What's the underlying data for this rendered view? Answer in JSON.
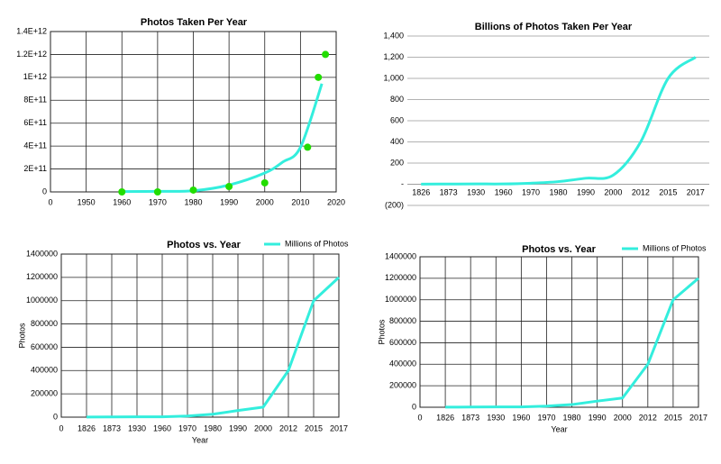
{
  "chart_data": [
    {
      "type": "scatter",
      "title": "Photos Taken Per Year",
      "series": [
        {
          "x": [
            1960,
            1970,
            1980,
            1990,
            2000,
            2012,
            2015,
            2017
          ],
          "values": [
            0,
            0,
            16000000000,
            47000000000,
            79000000000,
            390000000000,
            1000000000000,
            1200000000000
          ],
          "color": "#22dd00"
        }
      ],
      "trendline": {
        "x": [
          1960,
          1970,
          1980,
          1990,
          2000,
          2005,
          2010,
          2016
        ],
        "values": [
          3000000000,
          5000000000,
          10000000000,
          60000000000,
          165000000000,
          260000000000,
          390000000000,
          945000000000
        ],
        "color": "#33eedd"
      },
      "xlim": [
        1940,
        2020
      ],
      "xticks": [
        {
          "value": 1940,
          "label": "0"
        },
        1950,
        1960,
        1970,
        1980,
        1990,
        2000,
        2010,
        2020
      ],
      "ylim": [
        0,
        1400000000000
      ],
      "yticks": [
        0,
        {
          "value": 200000000000,
          "label": "2E+11"
        },
        {
          "value": 400000000000,
          "label": "4E+11"
        },
        {
          "value": 600000000000,
          "label": "6E+11"
        },
        {
          "value": 800000000000,
          "label": "8E+11"
        },
        {
          "value": 1000000000000,
          "label": "1E+12"
        },
        {
          "value": 1200000000000,
          "label": "1.2E+12"
        },
        {
          "value": 1400000000000,
          "label": "1.4E+12"
        }
      ],
      "grid": "both"
    },
    {
      "type": "line",
      "title": "Billions of Photos Taken Per Year",
      "categories": [
        "1826",
        "1873",
        "1930",
        "1960",
        "1970",
        "1980",
        "1990",
        "2000",
        "2012",
        "2015",
        "2017"
      ],
      "series": [
        {
          "values": [
            1,
            2,
            3,
            3,
            10,
            25,
            57,
            86,
            400,
            1000,
            1200
          ],
          "color": "#33eedd",
          "smooth": true
        }
      ],
      "ylim": [
        -200,
        1400
      ],
      "yticks": [
        {
          "value": -200,
          "label": "(200)"
        },
        {
          "value": 0,
          "label": "-"
        },
        200,
        400,
        600,
        800,
        {
          "value": 1000,
          "label": "1,000"
        },
        {
          "value": 1200,
          "label": "1,200"
        },
        {
          "value": 1400,
          "label": "1,400"
        }
      ],
      "grid": "y"
    },
    {
      "type": "line",
      "title": "Photos vs. Year",
      "xlabel": "Year",
      "ylabel": "Photos",
      "categories": [
        "0",
        "1826",
        "1873",
        "1930",
        "1960",
        "1970",
        "1980",
        "1990",
        "2000",
        "2012",
        "2015",
        "2017"
      ],
      "series": [
        {
          "name": "Millions of Photos",
          "values": [
            null,
            1000,
            2000,
            3000,
            3000,
            10000,
            25000,
            57000,
            86000,
            400000,
            1000000,
            1200000
          ],
          "color": "#33eedd"
        }
      ],
      "ylim": [
        0,
        1400000
      ],
      "yticks": [
        0,
        200000,
        400000,
        600000,
        800000,
        1000000,
        1200000,
        1400000
      ],
      "grid": "both",
      "legend": "top-right"
    },
    {
      "type": "line",
      "title": "Photos vs. Year",
      "xlabel": "Year",
      "ylabel": "Photos",
      "categories": [
        "0",
        "1826",
        "1873",
        "1930",
        "1960",
        "1970",
        "1980",
        "1990",
        "2000",
        "2012",
        "2015",
        "2017"
      ],
      "series": [
        {
          "name": "Millions of Photos",
          "values": [
            null,
            1000,
            2000,
            3000,
            3000,
            10000,
            25000,
            57000,
            86000,
            400000,
            1000000,
            1200000
          ],
          "color": "#33eedd"
        }
      ],
      "ylim": [
        0,
        1400000
      ],
      "yticks": [
        0,
        200000,
        400000,
        600000,
        800000,
        1000000,
        1200000,
        1400000
      ],
      "grid": "both",
      "legend": "top-right"
    }
  ]
}
